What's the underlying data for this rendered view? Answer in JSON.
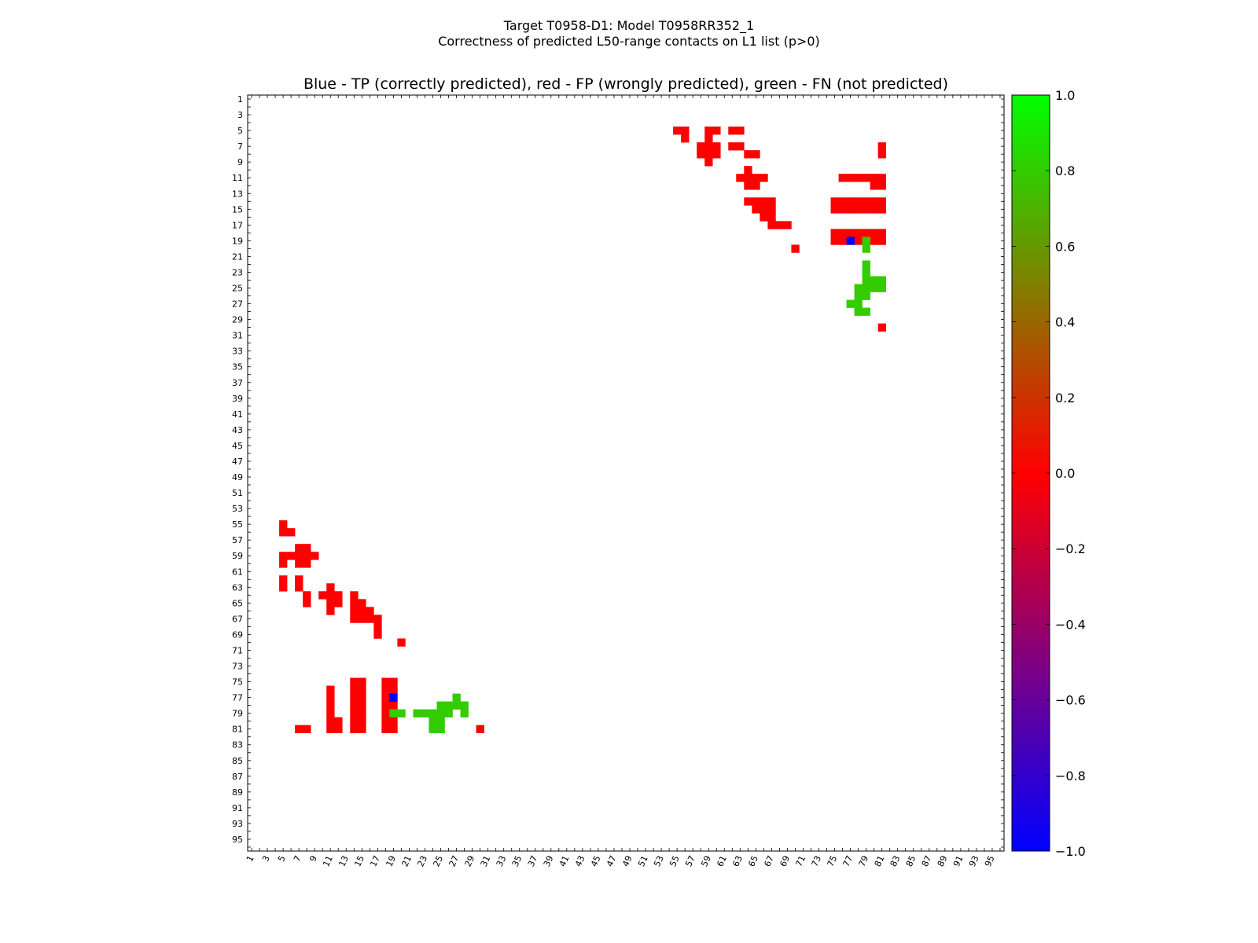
{
  "chart_data": {
    "type": "heatmap",
    "title_line1": "Target T0958-D1: Model T0958RR352_1",
    "title_line2": "Correctness of predicted L50-range contacts on L1 list (p>0)",
    "subtitle": "Blue - TP (correctly predicted), red - FP (wrongly predicted), green - FN (not predicted)",
    "n_residues": 96,
    "x_ticks": [
      "1",
      "3",
      "5",
      "7",
      "9",
      "11",
      "13",
      "15",
      "17",
      "19",
      "21",
      "23",
      "25",
      "27",
      "29",
      "31",
      "33",
      "35",
      "37",
      "39",
      "41",
      "43",
      "45",
      "47",
      "49",
      "51",
      "53",
      "55",
      "57",
      "59",
      "61",
      "63",
      "65",
      "67",
      "69",
      "71",
      "73",
      "75",
      "77",
      "79",
      "81",
      "83",
      "85",
      "87",
      "89",
      "91",
      "93",
      "95"
    ],
    "y_ticks": [
      "1",
      "3",
      "5",
      "7",
      "9",
      "11",
      "13",
      "15",
      "17",
      "19",
      "21",
      "23",
      "25",
      "27",
      "29",
      "31",
      "33",
      "35",
      "37",
      "39",
      "41",
      "43",
      "45",
      "47",
      "49",
      "51",
      "53",
      "55",
      "57",
      "59",
      "61",
      "63",
      "65",
      "67",
      "69",
      "71",
      "73",
      "75",
      "77",
      "79",
      "81",
      "83",
      "85",
      "87",
      "89",
      "91",
      "93",
      "95"
    ],
    "colorbar": {
      "min": -1.0,
      "max": 1.0,
      "ticks": [
        "1.0",
        "0.8",
        "0.6",
        "0.4",
        "0.2",
        "0.0",
        "−0.2",
        "−0.4",
        "−0.6",
        "−0.8",
        "−1.0"
      ],
      "tick_values": [
        1.0,
        0.8,
        0.6,
        0.4,
        0.2,
        0.0,
        -0.2,
        -0.4,
        -0.6,
        -0.8,
        -1.0
      ],
      "gradient": [
        {
          "value": 1.0,
          "color": "#00ff00"
        },
        {
          "value": 0.0,
          "color": "#ff0000"
        },
        {
          "value": -1.0,
          "color": "#0000ff"
        }
      ]
    },
    "legend": {
      "TP": {
        "value": -1.0,
        "color": "#0000ff"
      },
      "FP": {
        "value": 0.0,
        "color": "#ff0000"
      },
      "FN": {
        "value": 1.0,
        "color": "#33cc00"
      }
    },
    "fp_cells": [
      [
        5,
        55
      ],
      [
        5,
        56
      ],
      [
        6,
        56
      ],
      [
        5,
        59
      ],
      [
        5,
        60
      ],
      [
        6,
        59
      ],
      [
        7,
        58
      ],
      [
        7,
        59
      ],
      [
        7,
        60
      ],
      [
        8,
        58
      ],
      [
        8,
        59
      ],
      [
        8,
        60
      ],
      [
        9,
        59
      ],
      [
        5,
        62
      ],
      [
        5,
        63
      ],
      [
        7,
        62
      ],
      [
        7,
        63
      ],
      [
        8,
        64
      ],
      [
        8,
        65
      ],
      [
        10,
        64
      ],
      [
        11,
        63
      ],
      [
        11,
        64
      ],
      [
        11,
        65
      ],
      [
        11,
        66
      ],
      [
        12,
        64
      ],
      [
        12,
        65
      ],
      [
        14,
        64
      ],
      [
        14,
        65
      ],
      [
        14,
        66
      ],
      [
        14,
        67
      ],
      [
        15,
        65
      ],
      [
        15,
        66
      ],
      [
        15,
        67
      ],
      [
        16,
        66
      ],
      [
        16,
        67
      ],
      [
        17,
        67
      ],
      [
        17,
        68
      ],
      [
        17,
        69
      ],
      [
        20,
        70
      ],
      [
        7,
        81
      ],
      [
        8,
        81
      ],
      [
        11,
        76
      ],
      [
        11,
        77
      ],
      [
        11,
        78
      ],
      [
        11,
        79
      ],
      [
        11,
        80
      ],
      [
        11,
        81
      ],
      [
        12,
        80
      ],
      [
        12,
        81
      ],
      [
        14,
        75
      ],
      [
        14,
        76
      ],
      [
        14,
        77
      ],
      [
        14,
        78
      ],
      [
        14,
        79
      ],
      [
        14,
        80
      ],
      [
        14,
        81
      ],
      [
        15,
        75
      ],
      [
        15,
        76
      ],
      [
        15,
        77
      ],
      [
        15,
        78
      ],
      [
        15,
        79
      ],
      [
        15,
        80
      ],
      [
        15,
        81
      ],
      [
        18,
        75
      ],
      [
        18,
        76
      ],
      [
        18,
        77
      ],
      [
        18,
        78
      ],
      [
        18,
        79
      ],
      [
        18,
        80
      ],
      [
        18,
        81
      ],
      [
        19,
        75
      ],
      [
        19,
        76
      ],
      [
        19,
        78
      ],
      [
        19,
        80
      ],
      [
        19,
        81
      ],
      [
        30,
        81
      ]
    ],
    "tp_cells": [
      [
        19,
        77
      ]
    ],
    "fn_cells": [
      [
        19,
        79
      ],
      [
        20,
        79
      ],
      [
        22,
        79
      ],
      [
        23,
        79
      ],
      [
        24,
        79
      ],
      [
        24,
        80
      ],
      [
        24,
        81
      ],
      [
        25,
        78
      ],
      [
        25,
        79
      ],
      [
        25,
        80
      ],
      [
        25,
        81
      ],
      [
        26,
        78
      ],
      [
        26,
        79
      ],
      [
        27,
        77
      ],
      [
        27,
        78
      ],
      [
        28,
        78
      ],
      [
        28,
        79
      ]
    ]
  }
}
